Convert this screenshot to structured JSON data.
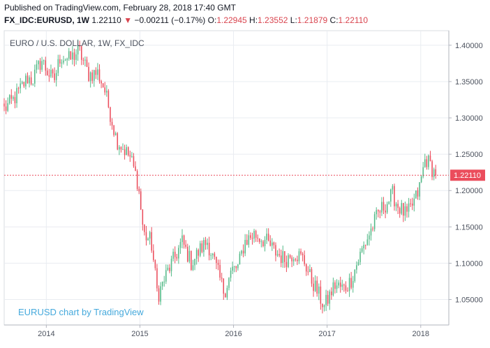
{
  "header": {
    "published": "Published on TradingView.com, February 28, 2018 17:40 GMT",
    "symbol": "FX_IDC:EURUSD, 1W",
    "last": "1.22110",
    "change_arrow": "▼",
    "change": "−0.00211 (−0.17%)",
    "open_label": "O:",
    "open": "1.22945",
    "high_label": "H:",
    "high": "1.23552",
    "low_label": "L:",
    "low": "1.21879",
    "close_label": "C:",
    "close": "1.22110"
  },
  "colors": {
    "up": "#53b987",
    "down": "#eb4d5c",
    "grid": "#e9ecf1",
    "axis_text": "#4c525e",
    "price_line": "#eb4d5c",
    "watermark": "#45a9dc"
  },
  "chart_data": {
    "type": "candlestick",
    "title": "EURO / U.S. DOLLAR, 1W, FX_IDC",
    "watermark": "EURUSD chart by TradingView",
    "x_ticks": [
      "2014",
      "2015",
      "2016",
      "2017",
      "2018"
    ],
    "y_ticks": [
      "1.40000",
      "1.35000",
      "1.30000",
      "1.25000",
      "1.20000",
      "1.15000",
      "1.10000",
      "1.05000"
    ],
    "ylim": [
      1.015,
      1.42
    ],
    "last_price": 1.2211,
    "last_price_label": "1.22110",
    "grid": true,
    "anchors": [
      [
        2013.55,
        1.312
      ],
      [
        2013.65,
        1.325
      ],
      [
        2013.8,
        1.355
      ],
      [
        2013.85,
        1.352
      ],
      [
        2013.95,
        1.38
      ],
      [
        2014.0,
        1.366
      ],
      [
        2014.08,
        1.35
      ],
      [
        2014.15,
        1.385
      ],
      [
        2014.25,
        1.38
      ],
      [
        2014.35,
        1.393
      ],
      [
        2014.45,
        1.36
      ],
      [
        2014.55,
        1.362
      ],
      [
        2014.62,
        1.34
      ],
      [
        2014.75,
        1.27
      ],
      [
        2014.9,
        1.245
      ],
      [
        2014.98,
        1.21
      ],
      [
        2015.04,
        1.14
      ],
      [
        2015.12,
        1.13
      ],
      [
        2015.19,
        1.055
      ],
      [
        2015.3,
        1.09
      ],
      [
        2015.38,
        1.11
      ],
      [
        2015.45,
        1.13
      ],
      [
        2015.55,
        1.1
      ],
      [
        2015.65,
        1.12
      ],
      [
        2015.72,
        1.13
      ],
      [
        2015.8,
        1.1
      ],
      [
        2015.9,
        1.06
      ],
      [
        2015.98,
        1.09
      ],
      [
        2016.05,
        1.095
      ],
      [
        2016.12,
        1.13
      ],
      [
        2016.22,
        1.14
      ],
      [
        2016.35,
        1.13
      ],
      [
        2016.45,
        1.115
      ],
      [
        2016.55,
        1.105
      ],
      [
        2016.65,
        1.115
      ],
      [
        2016.75,
        1.105
      ],
      [
        2016.82,
        1.08
      ],
      [
        2016.88,
        1.065
      ],
      [
        2016.97,
        1.04
      ],
      [
        2017.08,
        1.07
      ],
      [
        2017.18,
        1.065
      ],
      [
        2017.25,
        1.075
      ],
      [
        2017.32,
        1.1
      ],
      [
        2017.38,
        1.12
      ],
      [
        2017.45,
        1.14
      ],
      [
        2017.55,
        1.17
      ],
      [
        2017.65,
        1.185
      ],
      [
        2017.7,
        1.195
      ],
      [
        2017.75,
        1.18
      ],
      [
        2017.85,
        1.165
      ],
      [
        2017.93,
        1.185
      ],
      [
        2017.98,
        1.2
      ],
      [
        2018.05,
        1.245
      ],
      [
        2018.1,
        1.235
      ],
      [
        2018.16,
        1.2211
      ]
    ]
  }
}
